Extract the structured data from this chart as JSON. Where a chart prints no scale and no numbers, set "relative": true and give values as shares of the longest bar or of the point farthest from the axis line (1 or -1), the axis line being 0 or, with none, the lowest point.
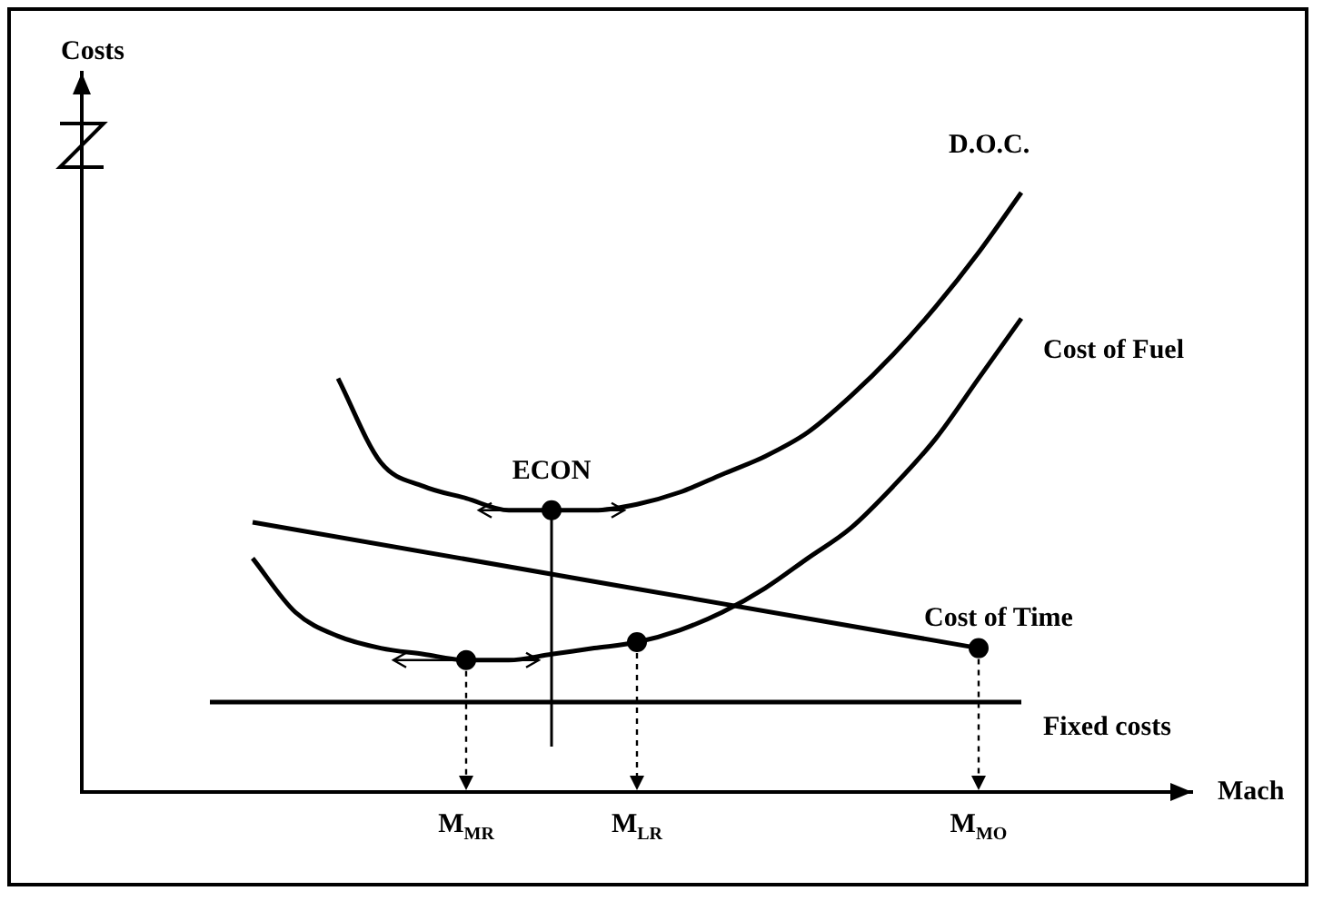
{
  "chart_data": {
    "type": "line",
    "relative": true,
    "xlabel": "Mach",
    "ylabel": "Costs",
    "tick_labels": "x",
    "grid": false,
    "legend": false,
    "categories": [
      null,
      null,
      null,
      null,
      null,
      null,
      null,
      null,
      null,
      "M$_{MR}$",
      null,
      null,
      null,
      "M$_{LR}$",
      null,
      null,
      null,
      null,
      null,
      null,
      null,
      "M$_{MO}$",
      null,
      null,
      null,
      null,
      null
    ],
    "annotations": [
      "ECON"
    ],
    "series": [
      {
        "name": "D.O.C.",
        "color": "#000000",
        "values": [
          null,
          null,
          null,
          null,
          null,
          null,
          0.69,
          0.55,
          0.51,
          0.49,
          0.47,
          0.47,
          0.47,
          0.48,
          0.5,
          0.53,
          0.56,
          0.6,
          0.66,
          0.73,
          0.81,
          0.9,
          1,
          null,
          null,
          null,
          null
        ]
      },
      {
        "name": "Cost of Fuel",
        "color": "#000000",
        "values": [
          null,
          null,
          null,
          null,
          0.39,
          0.3,
          0.26,
          0.24,
          0.23,
          0.22,
          0.22,
          0.23,
          0.24,
          0.25,
          0.27,
          0.3,
          0.34,
          0.39,
          0.44,
          0.51,
          0.59,
          0.69,
          0.79,
          null,
          null,
          null,
          null
        ]
      },
      {
        "name": "Cost of Time",
        "color": "#000000",
        "values": [
          null,
          null,
          null,
          null,
          0.45,
          null,
          null,
          null,
          null,
          null,
          null,
          null,
          null,
          null,
          null,
          null,
          null,
          null,
          null,
          null,
          null,
          0.24,
          null,
          null,
          null,
          null,
          null
        ]
      },
      {
        "name": "Fixed costs",
        "color": "#000000",
        "values": [
          null,
          null,
          null,
          0.15,
          null,
          null,
          null,
          null,
          null,
          null,
          null,
          null,
          null,
          null,
          null,
          null,
          null,
          null,
          null,
          null,
          null,
          null,
          0.15,
          null,
          null,
          null,
          null
        ]
      },
      {
        "type": "scatter",
        "color": "#000000",
        "values": [
          null,
          null,
          null,
          null,
          null,
          null,
          null,
          null,
          null,
          0.22,
          null,
          0.47,
          null,
          0.25,
          null,
          null,
          null,
          null,
          null,
          null,
          null,
          0.24,
          null,
          null,
          null,
          null,
          null
        ]
      }
    ]
  }
}
